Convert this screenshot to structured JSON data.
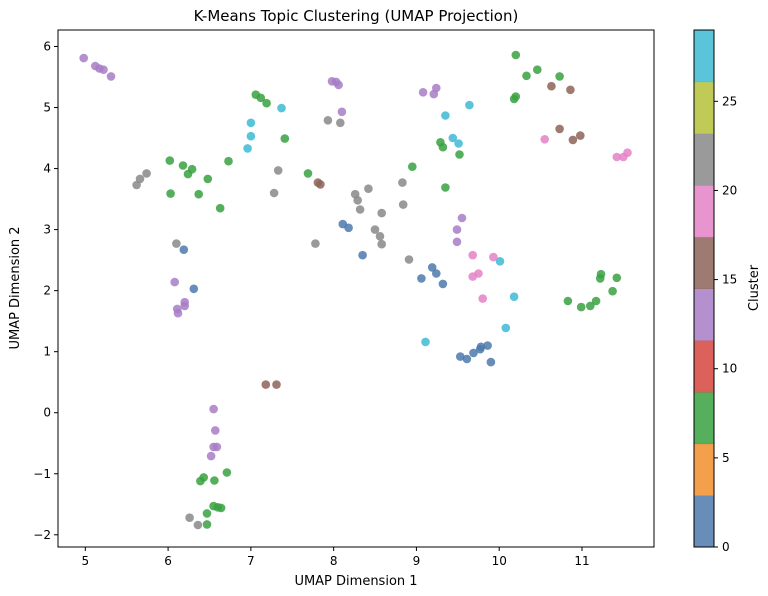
{
  "chart_data": {
    "type": "scatter",
    "title": "K-Means Topic Clustering (UMAP Projection)",
    "xlabel": "UMAP Dimension 1",
    "ylabel": "UMAP Dimension 2",
    "xlim": [
      4.67,
      11.87
    ],
    "ylim": [
      -2.2,
      6.27
    ],
    "xticks": [
      "5",
      "6",
      "7",
      "8",
      "9",
      "10",
      "11"
    ],
    "yticks": [
      "−2",
      "−1",
      "0",
      "1",
      "2",
      "3",
      "4",
      "5",
      "6"
    ],
    "grid": false,
    "colorbar": {
      "label": "Cluster",
      "range": [
        0,
        29
      ],
      "ticks": [
        "0",
        "5",
        "10",
        "15",
        "20",
        "25"
      ],
      "colors": [
        "#4e79ad",
        "#f28e2b",
        "#38a13f",
        "#d5453d",
        "#a77cc5",
        "#8d6458",
        "#e482c7",
        "#888888",
        "#b5c13a",
        "#3dbbd4"
      ]
    },
    "points": [
      {
        "x": 4.98,
        "y": 5.81,
        "c": 12
      },
      {
        "x": 5.12,
        "y": 5.68,
        "c": 12
      },
      {
        "x": 5.17,
        "y": 5.64,
        "c": 12
      },
      {
        "x": 5.22,
        "y": 5.62,
        "c": 12
      },
      {
        "x": 5.31,
        "y": 5.51,
        "c": 12
      },
      {
        "x": 9.08,
        "y": 5.25,
        "c": 12
      },
      {
        "x": 9.21,
        "y": 5.22,
        "c": 12
      },
      {
        "x": 9.24,
        "y": 5.32,
        "c": 12
      },
      {
        "x": 6.55,
        "y": 0.06,
        "c": 12
      },
      {
        "x": 6.57,
        "y": -0.29,
        "c": 12
      },
      {
        "x": 6.55,
        "y": -0.56,
        "c": 12
      },
      {
        "x": 6.59,
        "y": -0.56,
        "c": 12
      },
      {
        "x": 6.52,
        "y": -0.71,
        "c": 12
      },
      {
        "x": 7.06,
        "y": 5.21,
        "c": 7
      },
      {
        "x": 7.12,
        "y": 5.16,
        "c": 7
      },
      {
        "x": 7.19,
        "y": 5.07,
        "c": 7
      },
      {
        "x": 7.41,
        "y": 4.49,
        "c": 7
      },
      {
        "x": 6.02,
        "y": 4.13,
        "c": 7
      },
      {
        "x": 6.18,
        "y": 4.05,
        "c": 7
      },
      {
        "x": 6.29,
        "y": 3.99,
        "c": 7
      },
      {
        "x": 6.24,
        "y": 3.91,
        "c": 7
      },
      {
        "x": 6.48,
        "y": 3.83,
        "c": 7
      },
      {
        "x": 6.03,
        "y": 3.59,
        "c": 7
      },
      {
        "x": 6.37,
        "y": 3.58,
        "c": 7
      },
      {
        "x": 6.63,
        "y": 3.35,
        "c": 7
      },
      {
        "x": 6.73,
        "y": 4.12,
        "c": 7
      },
      {
        "x": 7.69,
        "y": 3.92,
        "c": 7
      },
      {
        "x": 6.71,
        "y": -0.98,
        "c": 7
      },
      {
        "x": 6.43,
        "y": -1.06,
        "c": 7
      },
      {
        "x": 6.39,
        "y": -1.12,
        "c": 7
      },
      {
        "x": 6.56,
        "y": -1.11,
        "c": 7
      },
      {
        "x": 6.55,
        "y": -1.53,
        "c": 7
      },
      {
        "x": 6.6,
        "y": -1.55,
        "c": 7
      },
      {
        "x": 6.64,
        "y": -1.56,
        "c": 7
      },
      {
        "x": 6.47,
        "y": -1.65,
        "c": 7
      },
      {
        "x": 6.47,
        "y": -1.83,
        "c": 7
      },
      {
        "x": 7.37,
        "y": 4.99,
        "c": 27
      },
      {
        "x": 7.0,
        "y": 4.75,
        "c": 27
      },
      {
        "x": 7.0,
        "y": 4.53,
        "c": 27
      },
      {
        "x": 6.96,
        "y": 4.33,
        "c": 27
      },
      {
        "x": 9.44,
        "y": 4.5,
        "c": 27
      },
      {
        "x": 9.51,
        "y": 4.41,
        "c": 27
      },
      {
        "x": 9.11,
        "y": 1.16,
        "c": 27
      },
      {
        "x": 7.98,
        "y": 5.43,
        "c": 13
      },
      {
        "x": 8.03,
        "y": 5.42,
        "c": 13
      },
      {
        "x": 8.06,
        "y": 5.37,
        "c": 13
      },
      {
        "x": 8.1,
        "y": 4.93,
        "c": 13
      },
      {
        "x": 6.08,
        "y": 2.14,
        "c": 13
      },
      {
        "x": 6.2,
        "y": 1.81,
        "c": 13
      },
      {
        "x": 6.2,
        "y": 1.75,
        "c": 13
      },
      {
        "x": 6.11,
        "y": 1.7,
        "c": 13
      },
      {
        "x": 6.12,
        "y": 1.63,
        "c": 13
      },
      {
        "x": 9.55,
        "y": 3.19,
        "c": 13
      },
      {
        "x": 9.49,
        "y": 3.0,
        "c": 13
      },
      {
        "x": 9.49,
        "y": 2.8,
        "c": 13
      },
      {
        "x": 7.93,
        "y": 4.79,
        "c": 22
      },
      {
        "x": 8.08,
        "y": 4.75,
        "c": 22
      },
      {
        "x": 5.62,
        "y": 3.73,
        "c": 22
      },
      {
        "x": 5.66,
        "y": 3.83,
        "c": 22
      },
      {
        "x": 5.74,
        "y": 3.92,
        "c": 22
      },
      {
        "x": 7.33,
        "y": 3.97,
        "c": 22
      },
      {
        "x": 7.28,
        "y": 3.6,
        "c": 22
      },
      {
        "x": 8.26,
        "y": 3.58,
        "c": 22
      },
      {
        "x": 8.42,
        "y": 3.67,
        "c": 22
      },
      {
        "x": 8.29,
        "y": 3.48,
        "c": 22
      },
      {
        "x": 8.32,
        "y": 3.33,
        "c": 22
      },
      {
        "x": 8.58,
        "y": 3.27,
        "c": 22
      },
      {
        "x": 8.83,
        "y": 3.77,
        "c": 22
      },
      {
        "x": 8.84,
        "y": 3.41,
        "c": 22
      },
      {
        "x": 8.5,
        "y": 3.0,
        "c": 22
      },
      {
        "x": 8.56,
        "y": 2.89,
        "c": 22
      },
      {
        "x": 8.58,
        "y": 2.76,
        "c": 22
      },
      {
        "x": 7.78,
        "y": 2.77,
        "c": 22
      },
      {
        "x": 8.91,
        "y": 2.51,
        "c": 22
      },
      {
        "x": 6.1,
        "y": 2.77,
        "c": 22
      },
      {
        "x": 6.26,
        "y": -1.72,
        "c": 22
      },
      {
        "x": 6.36,
        "y": -1.84,
        "c": 22
      },
      {
        "x": 7.81,
        "y": 3.77,
        "c": 17
      },
      {
        "x": 7.84,
        "y": 3.74,
        "c": 17
      },
      {
        "x": 7.18,
        "y": 0.46,
        "c": 17
      },
      {
        "x": 7.31,
        "y": 0.46,
        "c": 17
      },
      {
        "x": 10.63,
        "y": 5.35,
        "c": 17
      },
      {
        "x": 10.86,
        "y": 5.29,
        "c": 17
      },
      {
        "x": 10.73,
        "y": 4.65,
        "c": 17
      },
      {
        "x": 10.98,
        "y": 4.54,
        "c": 17
      },
      {
        "x": 10.89,
        "y": 4.47,
        "c": 17
      },
      {
        "x": 8.11,
        "y": 3.09,
        "c": 1
      },
      {
        "x": 8.18,
        "y": 3.03,
        "c": 1
      },
      {
        "x": 6.19,
        "y": 2.67,
        "c": 1
      },
      {
        "x": 6.31,
        "y": 2.03,
        "c": 1
      },
      {
        "x": 8.35,
        "y": 2.58,
        "c": 1
      },
      {
        "x": 9.19,
        "y": 2.38,
        "c": 1
      },
      {
        "x": 9.24,
        "y": 2.28,
        "c": 1
      },
      {
        "x": 9.06,
        "y": 2.2,
        "c": 1
      },
      {
        "x": 9.32,
        "y": 2.11,
        "c": 1
      },
      {
        "x": 9.86,
        "y": 1.1,
        "c": 1
      },
      {
        "x": 9.78,
        "y": 1.08,
        "c": 1
      },
      {
        "x": 9.77,
        "y": 1.04,
        "c": 1
      },
      {
        "x": 9.69,
        "y": 0.98,
        "c": 1
      },
      {
        "x": 9.53,
        "y": 0.92,
        "c": 1
      },
      {
        "x": 9.61,
        "y": 0.88,
        "c": 1
      },
      {
        "x": 9.9,
        "y": 0.83,
        "c": 1
      },
      {
        "x": 10.2,
        "y": 5.86,
        "c": 7.5
      },
      {
        "x": 10.46,
        "y": 5.62,
        "c": 7.5
      },
      {
        "x": 10.33,
        "y": 5.52,
        "c": 7.5
      },
      {
        "x": 10.73,
        "y": 5.51,
        "c": 7.5
      },
      {
        "x": 10.2,
        "y": 5.18,
        "c": 7.5
      },
      {
        "x": 10.18,
        "y": 5.14,
        "c": 7.5
      },
      {
        "x": 9.29,
        "y": 4.43,
        "c": 7.5
      },
      {
        "x": 9.32,
        "y": 4.35,
        "c": 7.5
      },
      {
        "x": 9.52,
        "y": 4.23,
        "c": 7.5
      },
      {
        "x": 8.95,
        "y": 4.03,
        "c": 7.5
      },
      {
        "x": 9.35,
        "y": 3.69,
        "c": 7.5
      },
      {
        "x": 11.23,
        "y": 2.27,
        "c": 7.5
      },
      {
        "x": 11.42,
        "y": 2.21,
        "c": 7.5
      },
      {
        "x": 11.22,
        "y": 2.2,
        "c": 7.5
      },
      {
        "x": 11.37,
        "y": 1.99,
        "c": 7.5
      },
      {
        "x": 10.83,
        "y": 1.83,
        "c": 7.5
      },
      {
        "x": 11.17,
        "y": 1.83,
        "c": 7.5
      },
      {
        "x": 10.99,
        "y": 1.73,
        "c": 7.5
      },
      {
        "x": 11.1,
        "y": 1.75,
        "c": 7.5
      },
      {
        "x": 9.35,
        "y": 4.87,
        "c": 27.8
      },
      {
        "x": 9.64,
        "y": 5.04,
        "c": 27.8
      },
      {
        "x": 10.01,
        "y": 2.48,
        "c": 27.8
      },
      {
        "x": 10.18,
        "y": 1.9,
        "c": 27.8
      },
      {
        "x": 10.08,
        "y": 1.39,
        "c": 27.8
      },
      {
        "x": 10.55,
        "y": 4.48,
        "c": 19.5
      },
      {
        "x": 11.42,
        "y": 4.19,
        "c": 19.5
      },
      {
        "x": 11.5,
        "y": 4.19,
        "c": 19.5
      },
      {
        "x": 11.55,
        "y": 4.26,
        "c": 19.5
      },
      {
        "x": 9.93,
        "y": 2.55,
        "c": 19.5
      },
      {
        "x": 9.68,
        "y": 2.58,
        "c": 19.5
      },
      {
        "x": 9.75,
        "y": 2.28,
        "c": 19.5
      },
      {
        "x": 9.68,
        "y": 2.23,
        "c": 19.5
      },
      {
        "x": 9.8,
        "y": 1.87,
        "c": 19.5
      }
    ]
  }
}
